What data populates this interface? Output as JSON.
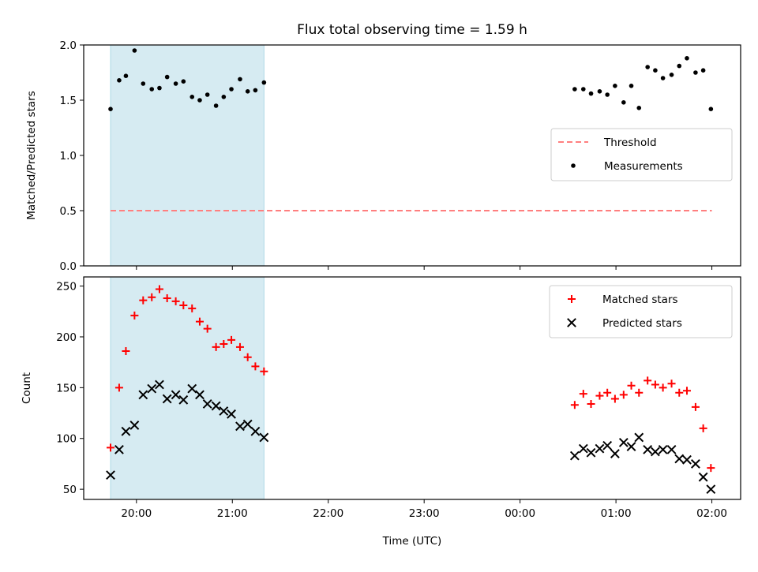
{
  "chart_data": {
    "title": "Flux total observing time = 1.59 h",
    "xlabel": "Time (UTC)",
    "x_tick_labels": [
      "20:00",
      "21:00",
      "22:00",
      "23:00",
      "00:00",
      "01:00",
      "02:00"
    ],
    "x_tick_hours": [
      20,
      21,
      22,
      23,
      24,
      25,
      26
    ],
    "xlim_hours": [
      19.45,
      26.3
    ],
    "highlight_span_hours": [
      19.73,
      21.33
    ],
    "colors": {
      "highlight": "#add8e6",
      "threshold": "#ff7f7f",
      "measurements": "#000000",
      "matched": "#ff0000",
      "predicted": "#000000",
      "frame": "#000000"
    },
    "panels": [
      {
        "type": "scatter",
        "ylabel": "Matched/Predicted stars",
        "ylim": [
          0,
          2.0
        ],
        "y_ticks": [
          0.0,
          0.5,
          1.0,
          1.5,
          2.0
        ],
        "y_tick_labels": [
          "0.0",
          "0.5",
          "1.0",
          "1.5",
          "2.0"
        ],
        "legend_position": "center-right",
        "threshold": {
          "name": "Threshold",
          "value": 0.5,
          "x_range_hours": [
            19.73,
            26.0
          ]
        },
        "series": [
          {
            "name": "Measurements",
            "marker": "dot",
            "points": [
              [
                19.73,
                1.42
              ],
              [
                19.82,
                1.68
              ],
              [
                19.89,
                1.72
              ],
              [
                19.98,
                1.95
              ],
              [
                20.07,
                1.65
              ],
              [
                20.16,
                1.6
              ],
              [
                20.24,
                1.61
              ],
              [
                20.32,
                1.71
              ],
              [
                20.41,
                1.65
              ],
              [
                20.49,
                1.67
              ],
              [
                20.58,
                1.53
              ],
              [
                20.66,
                1.5
              ],
              [
                20.74,
                1.55
              ],
              [
                20.83,
                1.45
              ],
              [
                20.91,
                1.53
              ],
              [
                20.99,
                1.6
              ],
              [
                21.08,
                1.69
              ],
              [
                21.16,
                1.58
              ],
              [
                21.24,
                1.59
              ],
              [
                21.33,
                1.66
              ],
              [
                24.57,
                1.6
              ],
              [
                24.66,
                1.6
              ],
              [
                24.74,
                1.56
              ],
              [
                24.83,
                1.58
              ],
              [
                24.91,
                1.55
              ],
              [
                24.99,
                1.63
              ],
              [
                25.08,
                1.48
              ],
              [
                25.16,
                1.63
              ],
              [
                25.24,
                1.43
              ],
              [
                25.33,
                1.8
              ],
              [
                25.41,
                1.77
              ],
              [
                25.49,
                1.7
              ],
              [
                25.58,
                1.73
              ],
              [
                25.66,
                1.81
              ],
              [
                25.74,
                1.88
              ],
              [
                25.83,
                1.75
              ],
              [
                25.91,
                1.77
              ],
              [
                25.99,
                1.42
              ]
            ]
          }
        ]
      },
      {
        "type": "scatter",
        "ylabel": "Count",
        "ylim": [
          40,
          259
        ],
        "y_ticks": [
          50,
          100,
          150,
          200,
          250
        ],
        "y_tick_labels": [
          "50",
          "100",
          "150",
          "200",
          "250"
        ],
        "legend_position": "top-right",
        "series": [
          {
            "name": "Matched stars",
            "marker": "plus",
            "points": [
              [
                19.73,
                91
              ],
              [
                19.82,
                150
              ],
              [
                19.89,
                186
              ],
              [
                19.98,
                221
              ],
              [
                20.07,
                236
              ],
              [
                20.16,
                239
              ],
              [
                20.24,
                247
              ],
              [
                20.32,
                238
              ],
              [
                20.41,
                235
              ],
              [
                20.49,
                231
              ],
              [
                20.58,
                228
              ],
              [
                20.66,
                215
              ],
              [
                20.74,
                208
              ],
              [
                20.83,
                190
              ],
              [
                20.91,
                193
              ],
              [
                20.99,
                197
              ],
              [
                21.08,
                190
              ],
              [
                21.16,
                180
              ],
              [
                21.24,
                171
              ],
              [
                21.33,
                166
              ],
              [
                24.57,
                133
              ],
              [
                24.66,
                144
              ],
              [
                24.74,
                134
              ],
              [
                24.83,
                142
              ],
              [
                24.91,
                145
              ],
              [
                24.99,
                139
              ],
              [
                25.08,
                143
              ],
              [
                25.16,
                152
              ],
              [
                25.24,
                145
              ],
              [
                25.33,
                157
              ],
              [
                25.41,
                153
              ],
              [
                25.49,
                150
              ],
              [
                25.58,
                154
              ],
              [
                25.66,
                145
              ],
              [
                25.74,
                147
              ],
              [
                25.83,
                131
              ],
              [
                25.91,
                110
              ],
              [
                25.99,
                71
              ]
            ]
          },
          {
            "name": "Predicted stars",
            "marker": "x",
            "points": [
              [
                19.73,
                64
              ],
              [
                19.82,
                89
              ],
              [
                19.89,
                107
              ],
              [
                19.98,
                113
              ],
              [
                20.07,
                143
              ],
              [
                20.16,
                149
              ],
              [
                20.24,
                153
              ],
              [
                20.32,
                139
              ],
              [
                20.41,
                143
              ],
              [
                20.49,
                138
              ],
              [
                20.58,
                149
              ],
              [
                20.66,
                143
              ],
              [
                20.74,
                134
              ],
              [
                20.83,
                132
              ],
              [
                20.91,
                127
              ],
              [
                20.99,
                124
              ],
              [
                21.08,
                112
              ],
              [
                21.16,
                114
              ],
              [
                21.24,
                107
              ],
              [
                21.33,
                101
              ],
              [
                24.57,
                83
              ],
              [
                24.66,
                90
              ],
              [
                24.74,
                86
              ],
              [
                24.83,
                90
              ],
              [
                24.91,
                93
              ],
              [
                24.99,
                85
              ],
              [
                25.08,
                96
              ],
              [
                25.16,
                92
              ],
              [
                25.24,
                101
              ],
              [
                25.33,
                89
              ],
              [
                25.41,
                87
              ],
              [
                25.49,
                89
              ],
              [
                25.58,
                89
              ],
              [
                25.66,
                80
              ],
              [
                25.74,
                79
              ],
              [
                25.83,
                75
              ],
              [
                25.91,
                62
              ],
              [
                25.99,
                50
              ]
            ]
          }
        ]
      }
    ]
  }
}
